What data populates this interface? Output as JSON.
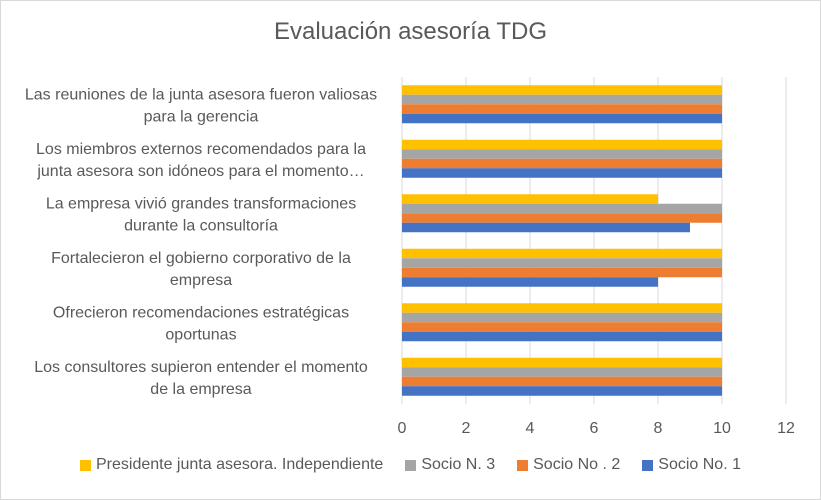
{
  "chart_data": {
    "type": "bar",
    "orientation": "horizontal",
    "title": "Evaluación asesoría TDG",
    "categories": [
      [
        "Las reuniones de la junta asesora fueron valiosas",
        "para la gerencia"
      ],
      [
        "Los miembros externos recomendados para la",
        "junta asesora son idóneos para el momento…"
      ],
      [
        "La empresa vivió grandes transformaciones",
        "durante la consultoría"
      ],
      [
        "Fortalecieron el gobierno corporativo de la",
        "empresa"
      ],
      [
        "Ofrecieron recomendaciones estratégicas",
        "oportunas"
      ],
      [
        "Los consultores supieron entender el momento",
        "de la empresa"
      ]
    ],
    "series": [
      {
        "name": "Presidente junta asesora. Independiente",
        "color": "#FFC000",
        "values": [
          10,
          10,
          8,
          10,
          10,
          10
        ]
      },
      {
        "name": "Socio N. 3",
        "color": "#A5A5A5",
        "values": [
          10,
          10,
          10,
          10,
          10,
          10
        ]
      },
      {
        "name": "Socio No . 2",
        "color": "#ED7D31",
        "values": [
          10,
          10,
          10,
          10,
          10,
          10
        ]
      },
      {
        "name": "Socio No. 1",
        "color": "#4472C4",
        "values": [
          10,
          10,
          9,
          8,
          10,
          10
        ]
      }
    ],
    "xlim": [
      0,
      12
    ],
    "xticks": [
      "0",
      "2",
      "4",
      "6",
      "8",
      "10",
      "12"
    ],
    "grid": true,
    "legend": "bottom"
  }
}
